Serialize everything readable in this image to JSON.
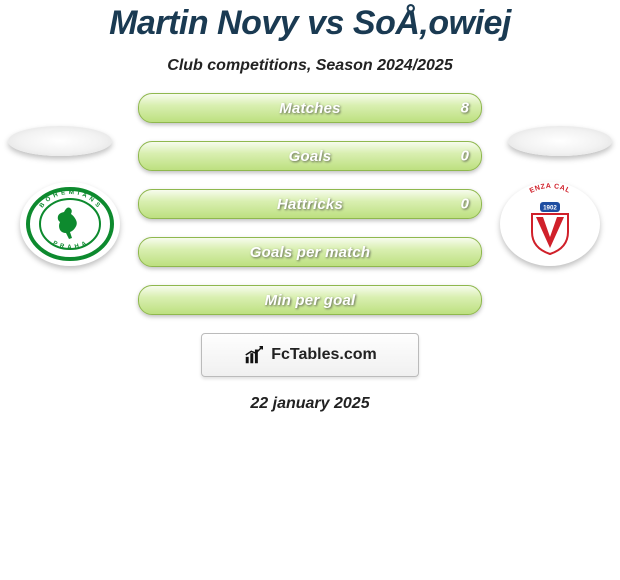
{
  "title": "Martin Novy vs SoÅ‚owiej",
  "subtitle": "Club competitions, Season 2024/2025",
  "date": "22 january 2025",
  "stat_rows": [
    {
      "label": "Matches",
      "value_right": "8"
    },
    {
      "label": "Goals",
      "value_right": "0"
    },
    {
      "label": "Hattricks",
      "value_right": "0"
    },
    {
      "label": "Goals per match",
      "value_right": ""
    },
    {
      "label": "Min per goal",
      "value_right": ""
    }
  ],
  "pill": {
    "bg_gradient_top": "#f7fcee",
    "bg_gradient_mid": "#d9efb1",
    "bg_gradient_bottom": "#bde080",
    "border_color": "#8fb84e",
    "label_color": "#ffffff",
    "label_fontsize": 15
  },
  "crest_left": {
    "name": "Bohemians Praha",
    "ring_color": "#0d8a2e",
    "silhouette_color": "#0d8a2e",
    "text": "BOHEMIANS"
  },
  "crest_right": {
    "name": "Vicenza Calcio",
    "shield_red": "#d0202a",
    "shield_white": "#ffffff",
    "blue": "#1f4ea1",
    "year": "1902"
  },
  "banner": {
    "text": "FcTables.com",
    "icon_color": "#111111"
  },
  "colors": {
    "title": "#1a3a52",
    "subtitle": "#222222",
    "background": "#ffffff"
  }
}
